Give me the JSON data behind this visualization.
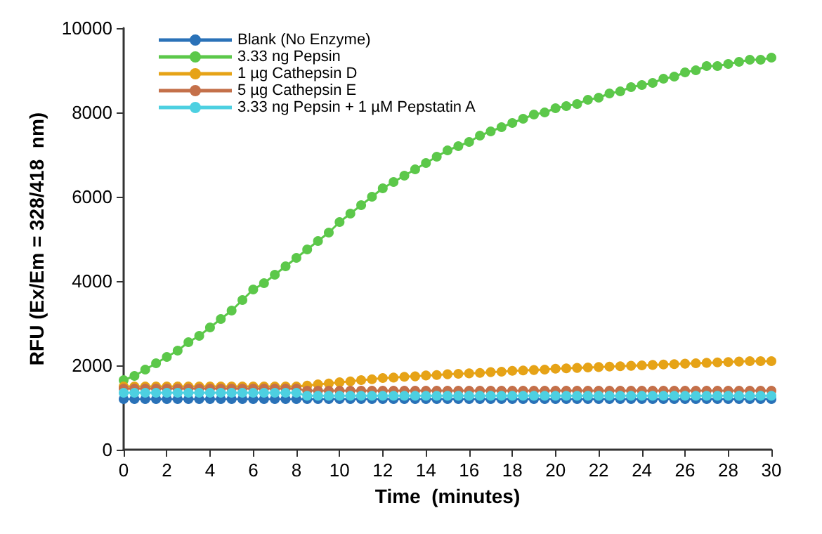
{
  "chart_data": {
    "type": "line",
    "xlabel": "Time  (minutes)",
    "ylabel": "RFU (Ex/Em = 328/418  nm)",
    "x": [
      0,
      0.5,
      1,
      1.5,
      2,
      2.5,
      3,
      3.5,
      4,
      4.5,
      5,
      5.5,
      6,
      6.5,
      7,
      7.5,
      8,
      8.5,
      9,
      9.5,
      10,
      10.5,
      11,
      11.5,
      12,
      12.5,
      13,
      13.5,
      14,
      14.5,
      15,
      15.5,
      16,
      16.5,
      17,
      17.5,
      18,
      18.5,
      19,
      19.5,
      20,
      20.5,
      21,
      21.5,
      22,
      22.5,
      23,
      23.5,
      24,
      24.5,
      25,
      25.5,
      26,
      26.5,
      27,
      27.5,
      28,
      28.5,
      29,
      29.5,
      30
    ],
    "series": [
      {
        "name": "Blank (No Enzyme)",
        "color": "#2a72b8",
        "values": [
          1200,
          1200,
          1200,
          1200,
          1200,
          1200,
          1200,
          1200,
          1200,
          1200,
          1200,
          1200,
          1200,
          1200,
          1200,
          1200,
          1200,
          1200,
          1200,
          1200,
          1200,
          1200,
          1200,
          1200,
          1200,
          1200,
          1200,
          1200,
          1200,
          1200,
          1200,
          1200,
          1200,
          1200,
          1200,
          1200,
          1200,
          1200,
          1200,
          1200,
          1200,
          1200,
          1200,
          1200,
          1200,
          1200,
          1200,
          1200,
          1200,
          1200,
          1200,
          1200,
          1200,
          1200,
          1200,
          1200,
          1200,
          1200,
          1200,
          1200,
          1200
        ]
      },
      {
        "name": "3.33 ng Pepsin",
        "color": "#5cc84a",
        "values": [
          1650,
          1750,
          1900,
          2050,
          2200,
          2350,
          2550,
          2700,
          2900,
          3100,
          3300,
          3550,
          3800,
          3950,
          4150,
          4350,
          4550,
          4750,
          4950,
          5150,
          5400,
          5600,
          5800,
          6000,
          6200,
          6350,
          6500,
          6650,
          6800,
          6950,
          7100,
          7200,
          7300,
          7450,
          7550,
          7650,
          7750,
          7850,
          7950,
          8000,
          8100,
          8150,
          8200,
          8300,
          8350,
          8450,
          8500,
          8600,
          8650,
          8700,
          8800,
          8850,
          8950,
          9000,
          9100,
          9100,
          9150,
          9200,
          9250,
          9250,
          9300
        ]
      },
      {
        "name": "1 µg Cathepsin D",
        "color": "#e6a317",
        "values": [
          1500,
          1500,
          1500,
          1500,
          1500,
          1500,
          1500,
          1500,
          1500,
          1500,
          1500,
          1500,
          1500,
          1500,
          1500,
          1500,
          1500,
          1520,
          1550,
          1570,
          1600,
          1620,
          1650,
          1670,
          1700,
          1710,
          1730,
          1740,
          1760,
          1770,
          1790,
          1800,
          1810,
          1820,
          1840,
          1850,
          1870,
          1880,
          1890,
          1900,
          1920,
          1930,
          1940,
          1950,
          1960,
          1970,
          1980,
          1990,
          2000,
          2010,
          2020,
          2030,
          2040,
          2050,
          2060,
          2070,
          2080,
          2090,
          2100,
          2100,
          2100
        ]
      },
      {
        "name": "5 µg Cathepsin E",
        "color": "#c4704a",
        "values": [
          1450,
          1450,
          1450,
          1450,
          1450,
          1450,
          1450,
          1450,
          1450,
          1450,
          1450,
          1450,
          1450,
          1450,
          1450,
          1450,
          1450,
          1400,
          1400,
          1400,
          1400,
          1400,
          1400,
          1400,
          1400,
          1400,
          1400,
          1400,
          1400,
          1400,
          1400,
          1400,
          1400,
          1400,
          1400,
          1400,
          1400,
          1400,
          1400,
          1400,
          1400,
          1400,
          1400,
          1400,
          1400,
          1400,
          1400,
          1400,
          1400,
          1400,
          1400,
          1400,
          1400,
          1400,
          1400,
          1400,
          1400,
          1400,
          1400,
          1400,
          1400
        ]
      },
      {
        "name": "3.33 ng Pepsin + 1 µM Pepstatin A",
        "color": "#4dd0e1",
        "values": [
          1350,
          1350,
          1350,
          1350,
          1350,
          1350,
          1350,
          1350,
          1350,
          1350,
          1350,
          1350,
          1350,
          1350,
          1350,
          1350,
          1350,
          1280,
          1280,
          1280,
          1280,
          1280,
          1280,
          1280,
          1280,
          1280,
          1280,
          1280,
          1280,
          1280,
          1280,
          1280,
          1280,
          1280,
          1280,
          1280,
          1280,
          1280,
          1280,
          1280,
          1280,
          1280,
          1280,
          1280,
          1280,
          1280,
          1280,
          1280,
          1280,
          1280,
          1280,
          1280,
          1280,
          1280,
          1280,
          1280,
          1280,
          1280,
          1280,
          1280,
          1280
        ]
      }
    ],
    "xlim": [
      0,
      30
    ],
    "xticks": [
      0,
      2,
      4,
      6,
      8,
      10,
      12,
      14,
      16,
      18,
      20,
      22,
      24,
      26,
      28,
      30
    ],
    "ylim": [
      0,
      10000
    ],
    "yticks": [
      0,
      2000,
      4000,
      6000,
      8000,
      10000
    ],
    "grid": false,
    "legend": "top left",
    "marker": "circle",
    "line_style": "solid"
  }
}
